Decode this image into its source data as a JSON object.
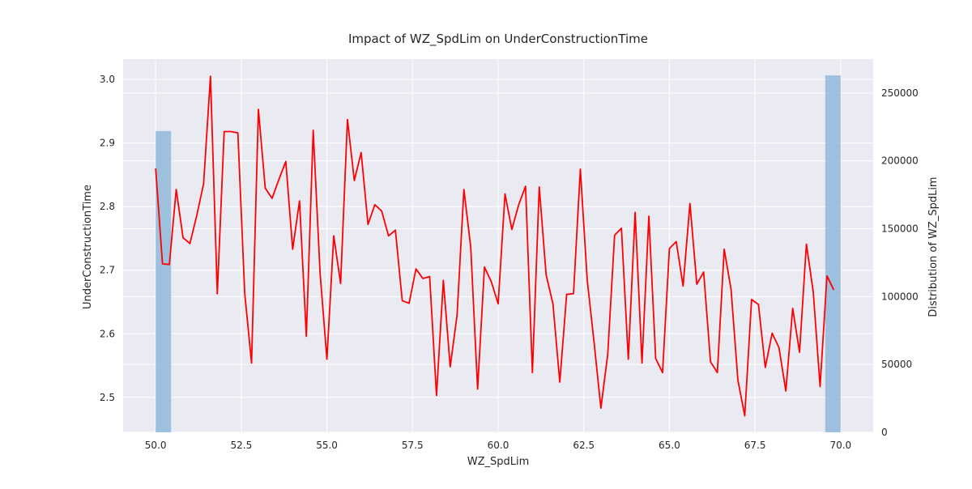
{
  "chart_data": {
    "type": "line",
    "title": "Impact of WZ_SpdLim on UnderConstructionTime",
    "xlabel": "WZ_SpdLim",
    "ylabel": "UnderConstructionTime",
    "y2label": "Distribution of WZ_SpdLim",
    "xlim": [
      49.05,
      70.95
    ],
    "ylim": [
      2.445,
      3.032
    ],
    "y2lim": [
      0,
      275000
    ],
    "xticks": [
      "50.0",
      "52.5",
      "55.0",
      "57.5",
      "60.0",
      "62.5",
      "65.0",
      "67.5",
      "70.0"
    ],
    "xtick_values": [
      50.0,
      52.5,
      55.0,
      57.5,
      60.0,
      62.5,
      65.0,
      67.5,
      70.0
    ],
    "yticks": [
      "2.5",
      "2.6",
      "2.7",
      "2.8",
      "2.9",
      "3.0"
    ],
    "ytick_values": [
      2.5,
      2.6,
      2.7,
      2.8,
      2.9,
      3.0
    ],
    "y2ticks": [
      "0",
      "50000",
      "100000",
      "150000",
      "200000",
      "250000"
    ],
    "y2tick_values": [
      0,
      50000,
      100000,
      150000,
      200000,
      250000
    ],
    "grid": true,
    "background": "#eaeaf2",
    "line_color": "#ff0000",
    "bar_color": "#8fb8dc",
    "bars": [
      {
        "x0": 50.0,
        "x1": 50.45,
        "value": 222000
      },
      {
        "x0": 69.55,
        "x1": 70.0,
        "value": 263000
      }
    ],
    "series": [
      {
        "x": [
          50.0,
          50.2,
          50.4,
          50.6,
          50.8,
          51.0,
          51.2,
          51.4,
          51.6,
          51.8,
          52.0,
          52.2,
          52.4,
          52.6,
          52.8,
          53.0,
          53.2,
          53.4,
          53.6,
          53.8,
          54.0,
          54.2,
          54.4,
          54.6,
          54.8,
          55.0,
          55.2,
          55.4,
          55.6,
          55.8,
          56.0,
          56.2,
          56.4,
          56.6,
          56.8,
          57.0,
          57.2,
          57.4,
          57.6,
          57.8,
          58.0,
          58.2,
          58.4,
          58.6,
          58.8,
          59.0,
          59.2,
          59.4,
          59.6,
          59.8,
          60.0,
          60.2,
          60.4,
          60.6,
          60.8,
          61.0,
          61.2,
          61.4,
          61.6,
          61.8,
          62.0,
          62.2,
          62.4,
          62.6,
          62.8,
          63.0,
          63.2,
          63.4,
          63.6,
          63.8,
          64.0,
          64.2,
          64.4,
          64.6,
          64.8,
          65.0,
          65.2,
          65.4,
          65.6,
          65.8,
          66.0,
          66.2,
          66.4,
          66.6,
          66.8,
          67.0,
          67.2,
          67.4,
          67.6,
          67.8,
          68.0,
          68.2,
          68.4,
          68.6,
          68.8,
          69.0,
          69.2,
          69.4,
          69.6,
          69.8
        ],
        "values": [
          2.86,
          2.71,
          2.709,
          2.827,
          2.751,
          2.742,
          2.786,
          2.836,
          3.005,
          2.663,
          2.918,
          2.918,
          2.916,
          2.664,
          2.554,
          2.953,
          2.829,
          2.813,
          2.843,
          2.871,
          2.733,
          2.809,
          2.596,
          2.92,
          2.696,
          2.56,
          2.754,
          2.679,
          2.937,
          2.841,
          2.885,
          2.772,
          2.803,
          2.793,
          2.754,
          2.763,
          2.652,
          2.648,
          2.702,
          2.687,
          2.69,
          2.503,
          2.684,
          2.548,
          2.629,
          2.827,
          2.736,
          2.513,
          2.705,
          2.682,
          2.647,
          2.82,
          2.764,
          2.803,
          2.832,
          2.539,
          2.831,
          2.693,
          2.647,
          2.524,
          2.662,
          2.663,
          2.859,
          2.685,
          2.587,
          2.483,
          2.568,
          2.755,
          2.766,
          2.56,
          2.791,
          2.554,
          2.785,
          2.561,
          2.539,
          2.734,
          2.745,
          2.675,
          2.805,
          2.678,
          2.697,
          2.556,
          2.539,
          2.733,
          2.67,
          2.527,
          2.471,
          2.654,
          2.646,
          2.547,
          2.601,
          2.578,
          2.51,
          2.64,
          2.571,
          2.741,
          2.666,
          2.517,
          2.691,
          2.669
        ]
      }
    ]
  }
}
